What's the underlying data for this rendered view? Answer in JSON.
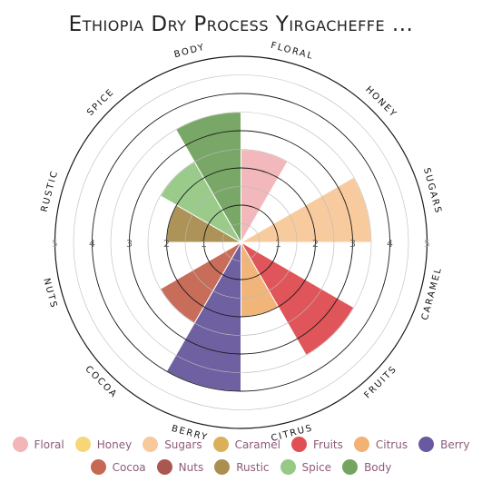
{
  "chart_data": {
    "type": "polar-area",
    "title": "Ethiopia Dry Process Yirgacheffe ...",
    "radial_range": [
      0,
      5
    ],
    "radial_ticks": [
      "1",
      "2",
      "3",
      "4",
      "5"
    ],
    "categories": [
      "Floral",
      "Honey",
      "Sugars",
      "Caramel",
      "Fruits",
      "Citrus",
      "Berry",
      "Cocoa",
      "Nuts",
      "Rustic",
      "Spice",
      "Body"
    ],
    "values": [
      2.5,
      0,
      3.5,
      0,
      3.5,
      2,
      4,
      2.5,
      0,
      2,
      2.5,
      3.5
    ],
    "colors": [
      "#f0a8ac",
      "#f5d060",
      "#f6c08a",
      "#d4a23c",
      "#d93035",
      "#eea45c",
      "#4f3d8e",
      "#bb4d36",
      "#9b3a32",
      "#9b7b32",
      "#84bf70",
      "#5c9446"
    ],
    "grid": true,
    "legend_position": "bottom"
  },
  "legend": {
    "row1": [
      "Floral",
      "Honey",
      "Sugars",
      "Caramel",
      "Fruits",
      "Citrus",
      "Berry"
    ],
    "row2": [
      "Cocoa",
      "Nuts",
      "Rustic",
      "Spice",
      "Body"
    ]
  }
}
